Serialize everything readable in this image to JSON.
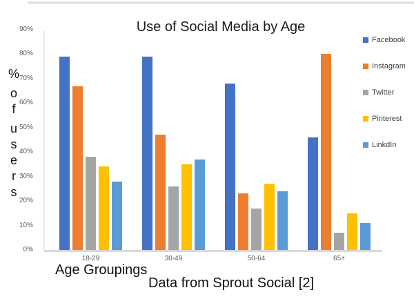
{
  "page": {
    "footer_note": "Data from Sprout Social [2]"
  },
  "chart_data": {
    "type": "bar",
    "title": "Use of Social Media by Age",
    "xlabel": "Age Groupings",
    "ylabel": "% of users",
    "categories": [
      "18-29",
      "30-49",
      "50-64",
      "65+"
    ],
    "series": [
      {
        "name": "Facebook",
        "color": "#4472C4",
        "values": [
          79,
          79,
          68,
          46
        ]
      },
      {
        "name": "Instagram",
        "color": "#ED7D31",
        "values": [
          67,
          47,
          23,
          80
        ]
      },
      {
        "name": "Twitter",
        "color": "#A5A5A5",
        "values": [
          38,
          26,
          17,
          7
        ]
      },
      {
        "name": "Pinterest",
        "color": "#FFC000",
        "values": [
          34,
          35,
          27,
          15
        ]
      },
      {
        "name": "LinkdIn",
        "color": "#5B9BD5",
        "values": [
          28,
          37,
          24,
          11
        ]
      }
    ],
    "y_ticks": [
      "0%",
      "10%",
      "20%",
      "30%",
      "40%",
      "50%",
      "60%",
      "70%",
      "80%",
      "90%"
    ],
    "ylim": [
      0,
      90
    ],
    "grid": false,
    "legend_position": "right"
  }
}
